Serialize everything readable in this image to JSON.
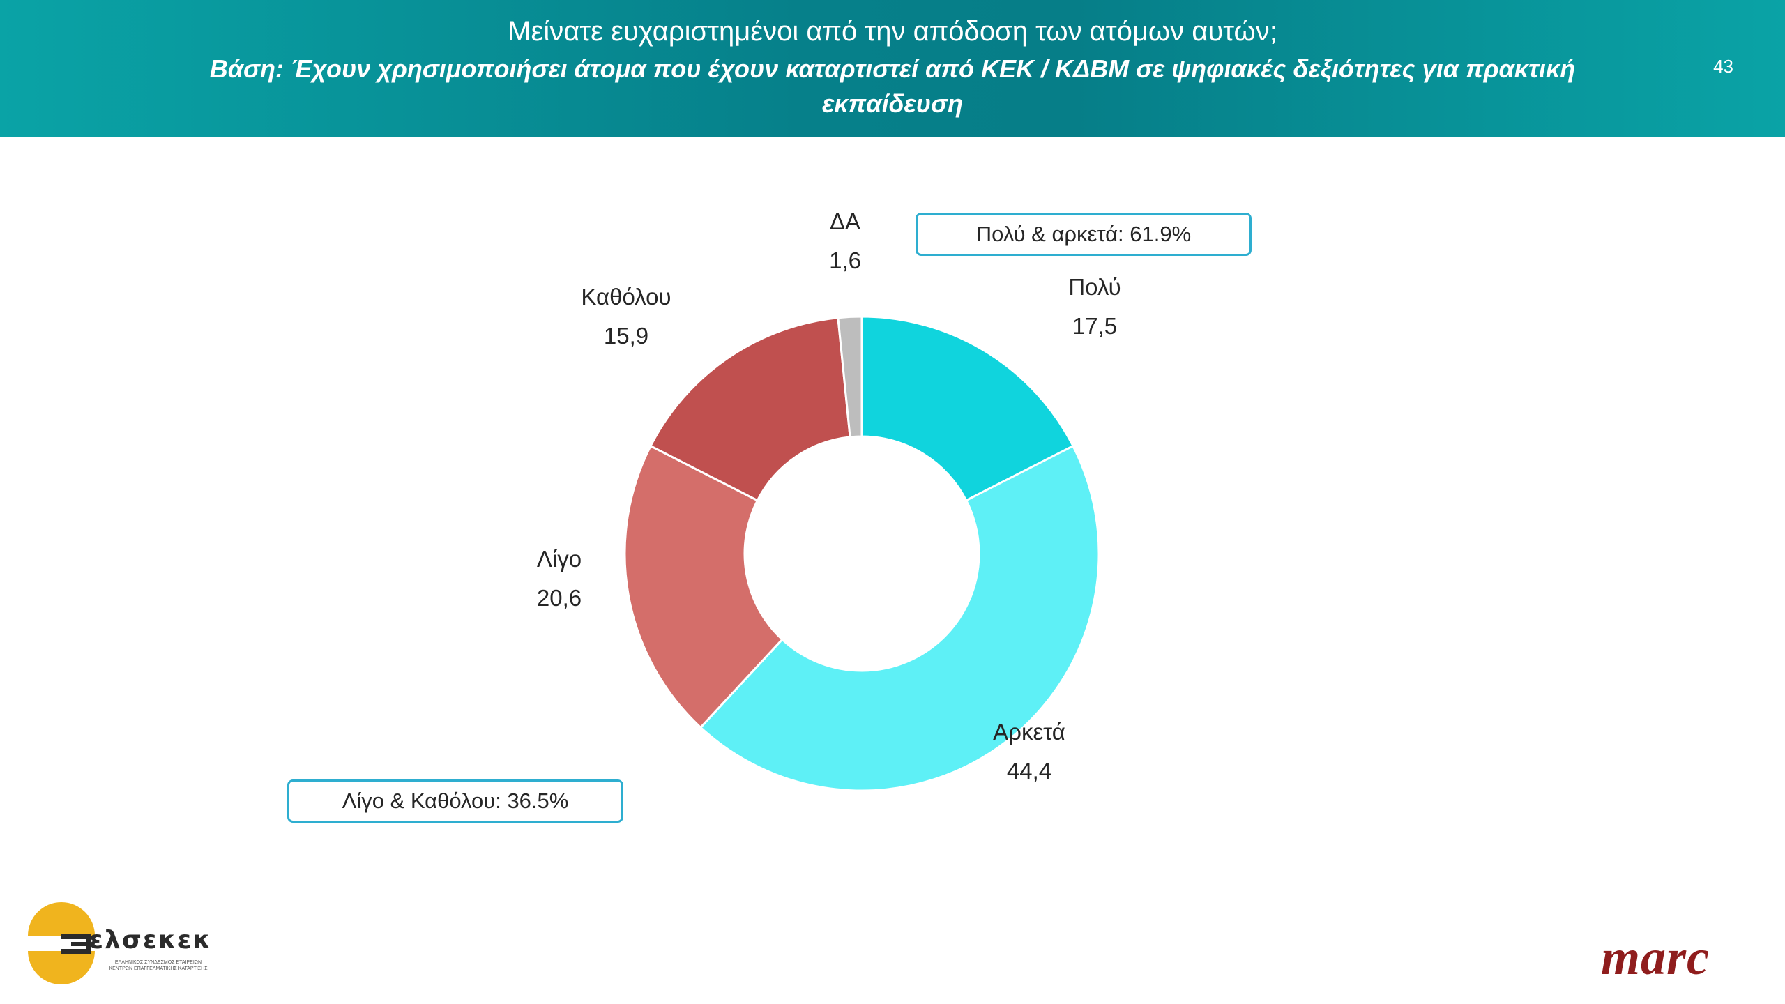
{
  "header": {
    "title": "Μείνατε ευχαριστημένοι από την απόδοση των ατόμων αυτών;",
    "subtitle": "Βάση: Έχουν χρησιμοποιήσει άτομα που έχουν καταρτιστεί από ΚΕΚ / ΚΔΒΜ σε ψηφιακές δεξιότητες για πρακτική εκπαίδευση",
    "page_number": "43"
  },
  "summaries": {
    "positive": "Πολύ & αρκετά: 61.9%",
    "negative": "Λίγο & Καθόλου: 36.5%"
  },
  "chart_data": {
    "type": "pie",
    "donut": true,
    "categories": [
      "Πολύ",
      "Αρκετά",
      "Λίγο",
      "Καθόλου",
      "ΔΑ"
    ],
    "values": [
      17.5,
      44.4,
      20.6,
      15.9,
      1.6
    ],
    "value_labels": [
      "17,5",
      "44,4",
      "20,6",
      "15,9",
      "1,6"
    ],
    "colors": [
      "#10d4dd",
      "#5ef0f6",
      "#d46e6a",
      "#c0504f",
      "#bdbdbd"
    ],
    "start": "12 o'clock, clockwise"
  },
  "logos": {
    "left_brand": "ελσεκεκ",
    "left_tagline_1": "ΕΛΛΗΝΙΚΟΣ ΣΥΝΔΕΣΜΟΣ ΕΤΑΙΡΕΙΩΝ",
    "left_tagline_2": "ΚΕΝΤΡΩΝ ΕΠΑΓΓΕΛΜΑΤΙΚΗΣ ΚΑΤΑΡΤΙΣΗΣ",
    "left_colors": [
      "#f0b41e",
      "#2b2b2b"
    ],
    "right_brand": "marc",
    "right_color": "#8f1d1d"
  }
}
